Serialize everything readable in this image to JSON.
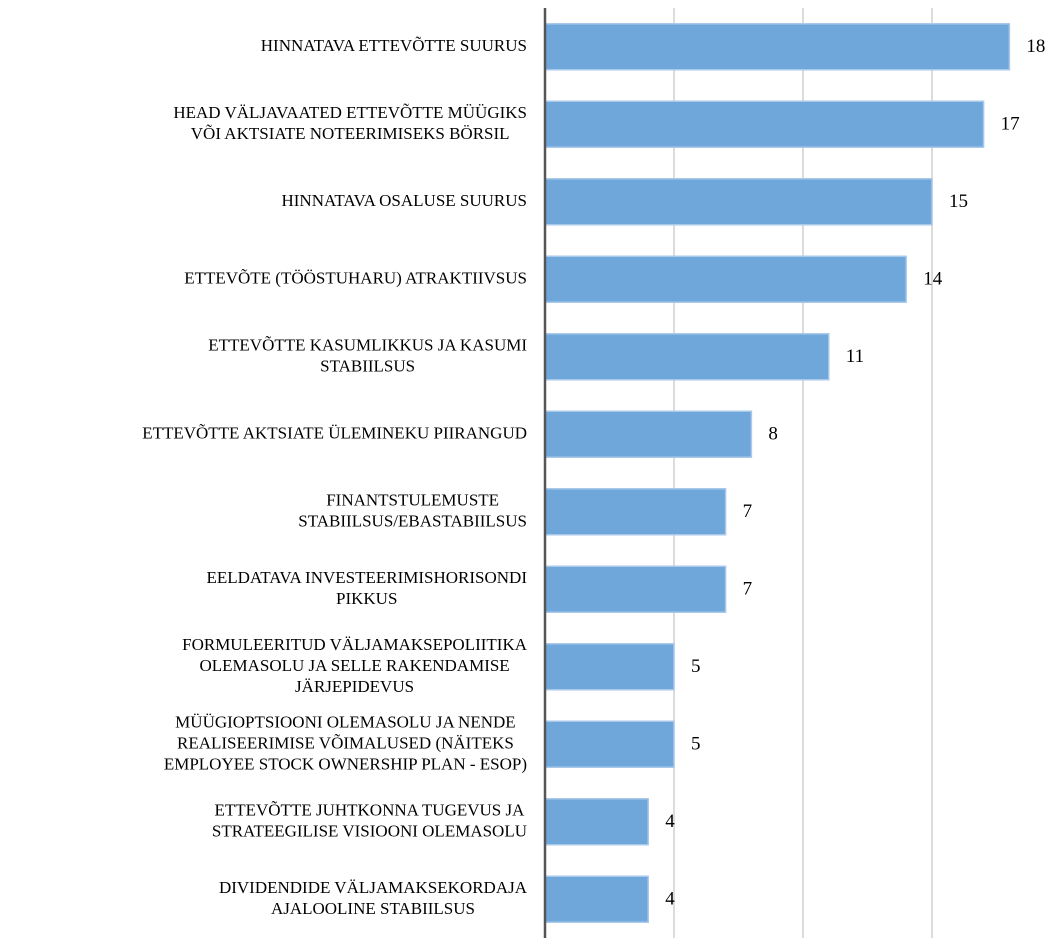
{
  "chart_data": {
    "type": "bar",
    "orientation": "horizontal",
    "categories": [
      "HINNATAVA ETTEVÕTTE SUURUS",
      "HEAD VÄLJAVAATED ETTEVÕTTE MÜÜGIKS\nVÕI AKTSIATE NOTEERIMISEKS BÖRSIL",
      "HINNATAVA OSALUSE SUURUS",
      "ETTEVÕTE (TÖÖSTUHARU) ATRAKTIIVSUS",
      "ETTEVÕTTE KASUMLIKKUS JA KASUMI\nSTABIILSUS",
      "ETTEVÕTTE AKTSIATE ÜLEMINEKU PIIRANGUD",
      "FINANTSTULEMUSTE\nSTABIILSUS/EBASTABIILSUS",
      "EELDATAVA INVESTEERIMISHORISONDI\nPIKKUS",
      "FORMULEERITUD VÄLJAMAKSEPOLIITIKA\nOLEMASOLU JA SELLE RAKENDAMISE\nJÄRJEPIDEVUS",
      "MÜÜGIOPTSIOONI OLEMASOLU JA NENDE\nREALISEERIMISE VÕIMALUSED (NÄITEKS\nEMPLOYEE STOCK OWNERSHIP PLAN - ESOP)",
      "ETTEVÕTTE JUHTKONNA TUGEVUS JA\nSTRATEEGILISE VISIOONI OLEMASOLU",
      "DIVIDENDIDE VÄLJAMAKSEKORDAJA\nAJALOOLINE STABIILSUS"
    ],
    "values": [
      18,
      17,
      15,
      14,
      11,
      8,
      7,
      7,
      5,
      5,
      4,
      4
    ],
    "color": "#6fa7db",
    "xlim": [
      0,
      20
    ],
    "xticks": [
      5,
      10,
      15
    ],
    "grid": true
  }
}
